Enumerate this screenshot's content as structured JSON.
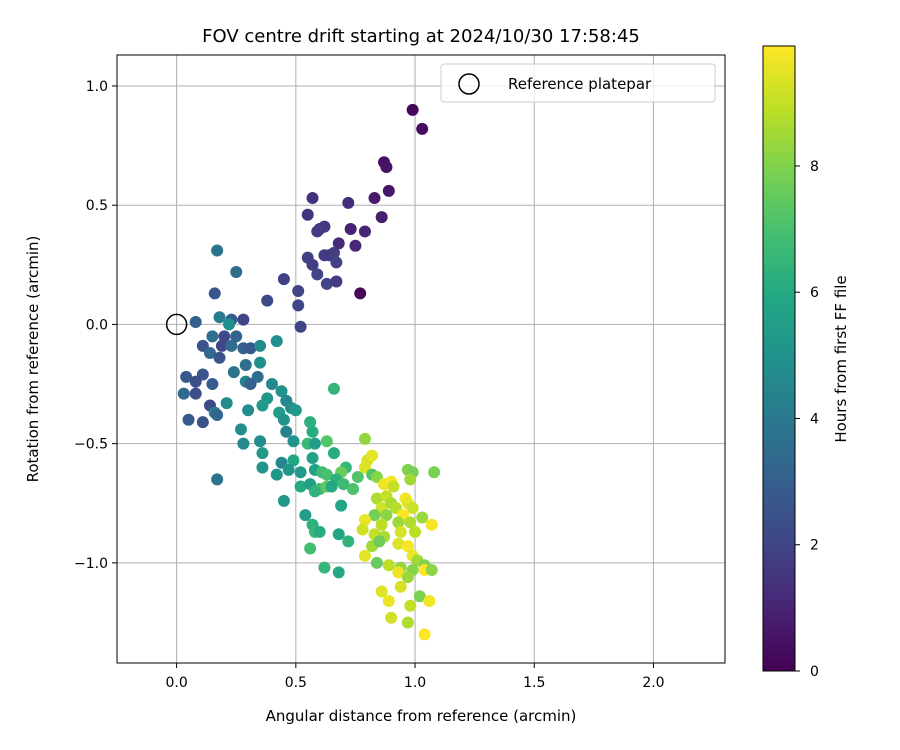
{
  "chart_data": {
    "type": "scatter",
    "title": "FOV centre drift starting at 2024/10/30 17:58:45",
    "xlabel": "Angular distance from reference (arcmin)",
    "ylabel": "Rotation from reference (arcmin)",
    "xlim": [
      -0.25,
      2.3
    ],
    "ylim": [
      -1.42,
      1.13
    ],
    "xticks": [
      0.0,
      0.5,
      1.0,
      1.5,
      2.0
    ],
    "xtick_labels": [
      "0.0",
      "0.5",
      "1.0",
      "1.5",
      "2.0"
    ],
    "yticks": [
      -1.0,
      -0.5,
      0.0,
      0.5,
      1.0
    ],
    "ytick_labels": [
      "−1.0",
      "−0.5",
      "0.0",
      "0.5",
      "1.0"
    ],
    "grid": true,
    "legend": {
      "placement": "top-right",
      "entries": [
        "Reference platepar"
      ]
    },
    "reference_point": {
      "x": 0.0,
      "y": 0.0,
      "label": "Reference platepar"
    },
    "colorbar": {
      "label": "Hours from first FF file",
      "range": [
        0,
        9.9
      ],
      "ticks": [
        0,
        2,
        4,
        6,
        8
      ],
      "tick_labels": [
        "0",
        "2",
        "4",
        "6",
        "8"
      ],
      "colormap": "viridis"
    },
    "points": [
      {
        "x": 0.99,
        "y": 0.9,
        "t": 0.2
      },
      {
        "x": 1.03,
        "y": 0.82,
        "t": 0.3
      },
      {
        "x": 0.87,
        "y": 0.68,
        "t": 0.4
      },
      {
        "x": 0.88,
        "y": 0.66,
        "t": 0.5
      },
      {
        "x": 0.89,
        "y": 0.56,
        "t": 0.6
      },
      {
        "x": 0.83,
        "y": 0.53,
        "t": 0.7
      },
      {
        "x": 0.86,
        "y": 0.45,
        "t": 0.8
      },
      {
        "x": 0.77,
        "y": 0.13,
        "t": 0.2
      },
      {
        "x": 0.73,
        "y": 0.4,
        "t": 0.9
      },
      {
        "x": 0.79,
        "y": 0.39,
        "t": 1.0
      },
      {
        "x": 0.75,
        "y": 0.33,
        "t": 1.1
      },
      {
        "x": 0.68,
        "y": 0.34,
        "t": 1.2
      },
      {
        "x": 0.72,
        "y": 0.51,
        "t": 1.3
      },
      {
        "x": 0.57,
        "y": 0.53,
        "t": 1.4
      },
      {
        "x": 0.55,
        "y": 0.46,
        "t": 1.5
      },
      {
        "x": 0.6,
        "y": 0.4,
        "t": 1.6
      },
      {
        "x": 0.62,
        "y": 0.41,
        "t": 1.6
      },
      {
        "x": 0.59,
        "y": 0.39,
        "t": 1.7
      },
      {
        "x": 0.66,
        "y": 0.3,
        "t": 1.8
      },
      {
        "x": 0.64,
        "y": 0.29,
        "t": 1.8
      },
      {
        "x": 0.67,
        "y": 0.26,
        "t": 1.9
      },
      {
        "x": 0.62,
        "y": 0.29,
        "t": 1.7
      },
      {
        "x": 0.55,
        "y": 0.28,
        "t": 1.9
      },
      {
        "x": 0.57,
        "y": 0.25,
        "t": 1.8
      },
      {
        "x": 0.59,
        "y": 0.21,
        "t": 2.0
      },
      {
        "x": 0.63,
        "y": 0.17,
        "t": 2.0
      },
      {
        "x": 0.67,
        "y": 0.18,
        "t": 1.7
      },
      {
        "x": 0.45,
        "y": 0.19,
        "t": 1.9
      },
      {
        "x": 0.51,
        "y": 0.14,
        "t": 2.0
      },
      {
        "x": 0.51,
        "y": 0.08,
        "t": 2.0
      },
      {
        "x": 0.52,
        "y": -0.01,
        "t": 2.1
      },
      {
        "x": 0.38,
        "y": 0.1,
        "t": 2.2
      },
      {
        "x": 0.17,
        "y": 0.31,
        "t": 3.8
      },
      {
        "x": 0.25,
        "y": 0.22,
        "t": 3.5
      },
      {
        "x": 0.16,
        "y": 0.13,
        "t": 2.6
      },
      {
        "x": 0.08,
        "y": 0.01,
        "t": 3.0
      },
      {
        "x": 0.18,
        "y": 0.03,
        "t": 4.2
      },
      {
        "x": 0.23,
        "y": 0.02,
        "t": 2.9
      },
      {
        "x": 0.28,
        "y": 0.02,
        "t": 2.0
      },
      {
        "x": 0.22,
        "y": 0.0,
        "t": 4.9
      },
      {
        "x": 0.15,
        "y": -0.05,
        "t": 3.6
      },
      {
        "x": 0.2,
        "y": -0.05,
        "t": 2.2
      },
      {
        "x": 0.25,
        "y": -0.05,
        "t": 3.1
      },
      {
        "x": 0.11,
        "y": -0.09,
        "t": 2.5
      },
      {
        "x": 0.19,
        "y": -0.09,
        "t": 2.1
      },
      {
        "x": 0.23,
        "y": -0.09,
        "t": 3.5
      },
      {
        "x": 0.28,
        "y": -0.1,
        "t": 3.0
      },
      {
        "x": 0.31,
        "y": -0.1,
        "t": 2.8
      },
      {
        "x": 0.35,
        "y": -0.09,
        "t": 4.6
      },
      {
        "x": 0.42,
        "y": -0.07,
        "t": 4.8
      },
      {
        "x": 0.14,
        "y": -0.12,
        "t": 3.4
      },
      {
        "x": 0.18,
        "y": -0.14,
        "t": 2.6
      },
      {
        "x": 0.29,
        "y": -0.17,
        "t": 3.6
      },
      {
        "x": 0.35,
        "y": -0.16,
        "t": 4.9
      },
      {
        "x": 0.24,
        "y": -0.2,
        "t": 3.8
      },
      {
        "x": 0.34,
        "y": -0.22,
        "t": 3.6
      },
      {
        "x": 0.04,
        "y": -0.22,
        "t": 2.7
      },
      {
        "x": 0.11,
        "y": -0.21,
        "t": 2.6
      },
      {
        "x": 0.08,
        "y": -0.24,
        "t": 2.4
      },
      {
        "x": 0.15,
        "y": -0.25,
        "t": 2.9
      },
      {
        "x": 0.29,
        "y": -0.24,
        "t": 4.3
      },
      {
        "x": 0.31,
        "y": -0.25,
        "t": 3.0
      },
      {
        "x": 0.4,
        "y": -0.25,
        "t": 4.6
      },
      {
        "x": 0.44,
        "y": -0.28,
        "t": 5.0
      },
      {
        "x": 0.03,
        "y": -0.29,
        "t": 3.4
      },
      {
        "x": 0.08,
        "y": -0.29,
        "t": 2.3
      },
      {
        "x": 0.38,
        "y": -0.31,
        "t": 5.2
      },
      {
        "x": 0.46,
        "y": -0.32,
        "t": 4.5
      },
      {
        "x": 0.14,
        "y": -0.34,
        "t": 2.2
      },
      {
        "x": 0.21,
        "y": -0.33,
        "t": 4.8
      },
      {
        "x": 0.36,
        "y": -0.34,
        "t": 5.4
      },
      {
        "x": 0.48,
        "y": -0.35,
        "t": 4.9
      },
      {
        "x": 0.5,
        "y": -0.36,
        "t": 5.3
      },
      {
        "x": 0.16,
        "y": -0.37,
        "t": 4.0
      },
      {
        "x": 0.3,
        "y": -0.36,
        "t": 4.8
      },
      {
        "x": 0.43,
        "y": -0.37,
        "t": 5.5
      },
      {
        "x": 0.45,
        "y": -0.4,
        "t": 5.1
      },
      {
        "x": 0.05,
        "y": -0.4,
        "t": 2.8
      },
      {
        "x": 0.11,
        "y": -0.41,
        "t": 2.5
      },
      {
        "x": 0.17,
        "y": -0.38,
        "t": 3.3
      },
      {
        "x": 0.56,
        "y": -0.41,
        "t": 6.3
      },
      {
        "x": 0.66,
        "y": -0.27,
        "t": 6.5
      },
      {
        "x": 0.27,
        "y": -0.44,
        "t": 4.8
      },
      {
        "x": 0.46,
        "y": -0.45,
        "t": 4.4
      },
      {
        "x": 0.57,
        "y": -0.45,
        "t": 6.1
      },
      {
        "x": 0.28,
        "y": -0.5,
        "t": 4.6
      },
      {
        "x": 0.35,
        "y": -0.49,
        "t": 4.8
      },
      {
        "x": 0.49,
        "y": -0.49,
        "t": 5.0
      },
      {
        "x": 0.55,
        "y": -0.5,
        "t": 6.6
      },
      {
        "x": 0.58,
        "y": -0.5,
        "t": 5.5
      },
      {
        "x": 0.63,
        "y": -0.49,
        "t": 7.2
      },
      {
        "x": 0.66,
        "y": -0.54,
        "t": 6.1
      },
      {
        "x": 0.36,
        "y": -0.54,
        "t": 5.4
      },
      {
        "x": 0.57,
        "y": -0.56,
        "t": 5.7
      },
      {
        "x": 0.49,
        "y": -0.57,
        "t": 5.9
      },
      {
        "x": 0.44,
        "y": -0.58,
        "t": 4.6
      },
      {
        "x": 0.36,
        "y": -0.6,
        "t": 5.1
      },
      {
        "x": 0.47,
        "y": -0.61,
        "t": 5.2
      },
      {
        "x": 0.52,
        "y": -0.62,
        "t": 5.4
      },
      {
        "x": 0.58,
        "y": -0.61,
        "t": 5.6
      },
      {
        "x": 0.61,
        "y": -0.62,
        "t": 6.8
      },
      {
        "x": 0.63,
        "y": -0.63,
        "t": 7.0
      },
      {
        "x": 0.71,
        "y": -0.6,
        "t": 6.6
      },
      {
        "x": 0.69,
        "y": -0.62,
        "t": 7.6
      },
      {
        "x": 0.76,
        "y": -0.64,
        "t": 7.2
      },
      {
        "x": 0.67,
        "y": -0.65,
        "t": 6.3
      },
      {
        "x": 0.42,
        "y": -0.63,
        "t": 5.2
      },
      {
        "x": 0.17,
        "y": -0.65,
        "t": 3.8
      },
      {
        "x": 0.52,
        "y": -0.68,
        "t": 6.0
      },
      {
        "x": 0.56,
        "y": -0.67,
        "t": 5.6
      },
      {
        "x": 0.6,
        "y": -0.69,
        "t": 6.9
      },
      {
        "x": 0.63,
        "y": -0.68,
        "t": 7.5
      },
      {
        "x": 0.65,
        "y": -0.68,
        "t": 6.0
      },
      {
        "x": 0.7,
        "y": -0.67,
        "t": 6.7
      },
      {
        "x": 0.74,
        "y": -0.69,
        "t": 7.1
      },
      {
        "x": 0.58,
        "y": -0.7,
        "t": 6.4
      },
      {
        "x": 0.45,
        "y": -0.74,
        "t": 5.3
      },
      {
        "x": 0.69,
        "y": -0.76,
        "t": 5.8
      },
      {
        "x": 0.54,
        "y": -0.8,
        "t": 5.5
      },
      {
        "x": 0.57,
        "y": -0.84,
        "t": 6.3
      },
      {
        "x": 0.58,
        "y": -0.87,
        "t": 6.6
      },
      {
        "x": 0.6,
        "y": -0.87,
        "t": 6.1
      },
      {
        "x": 0.68,
        "y": -0.88,
        "t": 5.8
      },
      {
        "x": 0.72,
        "y": -0.91,
        "t": 6.4
      },
      {
        "x": 0.56,
        "y": -0.94,
        "t": 6.9
      },
      {
        "x": 0.62,
        "y": -1.02,
        "t": 6.5
      },
      {
        "x": 0.68,
        "y": -1.04,
        "t": 6.0
      },
      {
        "x": 0.79,
        "y": -0.48,
        "t": 8.3
      },
      {
        "x": 0.8,
        "y": -0.57,
        "t": 9.3
      },
      {
        "x": 0.82,
        "y": -0.55,
        "t": 9.5
      },
      {
        "x": 0.79,
        "y": -0.6,
        "t": 9.4
      },
      {
        "x": 0.82,
        "y": -0.63,
        "t": 7.2
      },
      {
        "x": 0.84,
        "y": -0.64,
        "t": 8.1
      },
      {
        "x": 0.87,
        "y": -0.67,
        "t": 9.6
      },
      {
        "x": 0.9,
        "y": -0.66,
        "t": 9.8
      },
      {
        "x": 0.91,
        "y": -0.68,
        "t": 9.0
      },
      {
        "x": 0.97,
        "y": -0.61,
        "t": 8.0
      },
      {
        "x": 0.99,
        "y": -0.62,
        "t": 7.8
      },
      {
        "x": 0.98,
        "y": -0.65,
        "t": 8.5
      },
      {
        "x": 1.08,
        "y": -0.62,
        "t": 7.9
      },
      {
        "x": 0.84,
        "y": -0.73,
        "t": 8.7
      },
      {
        "x": 0.86,
        "y": -0.77,
        "t": 9.2
      },
      {
        "x": 0.88,
        "y": -0.72,
        "t": 9.0
      },
      {
        "x": 0.9,
        "y": -0.75,
        "t": 8.6
      },
      {
        "x": 0.92,
        "y": -0.77,
        "t": 8.8
      },
      {
        "x": 0.96,
        "y": -0.73,
        "t": 9.7
      },
      {
        "x": 0.97,
        "y": -0.75,
        "t": 9.5
      },
      {
        "x": 0.99,
        "y": -0.77,
        "t": 9.1
      },
      {
        "x": 0.83,
        "y": -0.8,
        "t": 7.8
      },
      {
        "x": 0.88,
        "y": -0.8,
        "t": 8.2
      },
      {
        "x": 0.95,
        "y": -0.8,
        "t": 9.9
      },
      {
        "x": 1.03,
        "y": -0.81,
        "t": 8.4
      },
      {
        "x": 0.79,
        "y": -0.82,
        "t": 9.6
      },
      {
        "x": 0.86,
        "y": -0.84,
        "t": 8.9
      },
      {
        "x": 0.93,
        "y": -0.83,
        "t": 8.4
      },
      {
        "x": 0.98,
        "y": -0.83,
        "t": 8.7
      },
      {
        "x": 1.07,
        "y": -0.84,
        "t": 9.8
      },
      {
        "x": 0.78,
        "y": -0.86,
        "t": 9.2
      },
      {
        "x": 0.83,
        "y": -0.88,
        "t": 9.0
      },
      {
        "x": 0.87,
        "y": -0.89,
        "t": 8.6
      },
      {
        "x": 0.94,
        "y": -0.87,
        "t": 9.3
      },
      {
        "x": 1.0,
        "y": -0.87,
        "t": 8.9
      },
      {
        "x": 0.82,
        "y": -0.93,
        "t": 8.5
      },
      {
        "x": 0.85,
        "y": -0.91,
        "t": 7.7
      },
      {
        "x": 0.93,
        "y": -0.92,
        "t": 9.4
      },
      {
        "x": 0.97,
        "y": -0.93,
        "t": 9.8
      },
      {
        "x": 0.99,
        "y": -0.97,
        "t": 9.6
      },
      {
        "x": 0.79,
        "y": -0.97,
        "t": 9.5
      },
      {
        "x": 0.84,
        "y": -1.0,
        "t": 7.6
      },
      {
        "x": 0.89,
        "y": -1.01,
        "t": 8.9
      },
      {
        "x": 0.94,
        "y": -1.02,
        "t": 8.3
      },
      {
        "x": 1.01,
        "y": -0.99,
        "t": 8.5
      },
      {
        "x": 1.04,
        "y": -1.01,
        "t": 8.0
      },
      {
        "x": 0.93,
        "y": -1.04,
        "t": 9.7
      },
      {
        "x": 0.99,
        "y": -1.03,
        "t": 8.1
      },
      {
        "x": 1.04,
        "y": -1.03,
        "t": 9.9
      },
      {
        "x": 1.07,
        "y": -1.03,
        "t": 8.2
      },
      {
        "x": 0.97,
        "y": -1.06,
        "t": 8.4
      },
      {
        "x": 0.94,
        "y": -1.1,
        "t": 9.3
      },
      {
        "x": 0.86,
        "y": -1.12,
        "t": 9.4
      },
      {
        "x": 1.02,
        "y": -1.14,
        "t": 7.9
      },
      {
        "x": 1.06,
        "y": -1.16,
        "t": 9.7
      },
      {
        "x": 0.89,
        "y": -1.16,
        "t": 9.6
      },
      {
        "x": 0.98,
        "y": -1.18,
        "t": 9.0
      },
      {
        "x": 0.9,
        "y": -1.23,
        "t": 9.2
      },
      {
        "x": 0.97,
        "y": -1.25,
        "t": 8.7
      },
      {
        "x": 1.04,
        "y": -1.3,
        "t": 9.9
      }
    ]
  }
}
